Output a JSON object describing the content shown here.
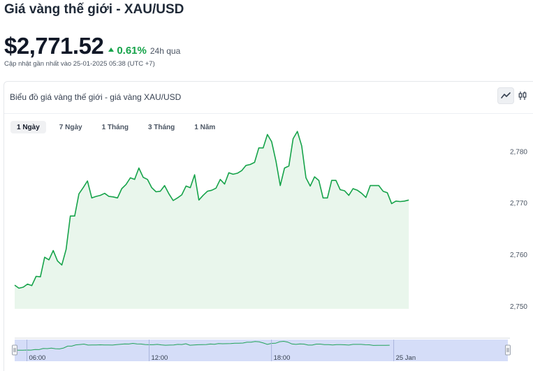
{
  "page": {
    "title": "Giá vàng thế giới - XAU/USD",
    "price": "$2,771.52",
    "change_pct": "0.61%",
    "change_period": "24h qua",
    "updated": "Cập nhật gần nhất vào 25-01-2025 05:38 (UTC +7)"
  },
  "card": {
    "title": "Biểu đồ giá vàng thế giới - giá vàng XAU/USD",
    "tabs": [
      {
        "label": "1 Ngày",
        "active": true
      },
      {
        "label": "7 Ngày",
        "active": false
      },
      {
        "label": "1 Tháng",
        "active": false
      },
      {
        "label": "3 Tháng",
        "active": false
      },
      {
        "label": "1 Năm",
        "active": false
      }
    ],
    "icons": [
      "line-chart-icon",
      "candlestick-icon"
    ]
  },
  "colors": {
    "line": "#16a34a",
    "area": "#e9f6ec",
    "navigator_fill": "#c7d2f5",
    "navigator_line": "#22a35a",
    "accent_green": "#16a34a"
  },
  "chart_data": {
    "type": "area",
    "title": "",
    "xlabel": "",
    "ylabel": "",
    "ylim": [
      2749.5,
      2785
    ],
    "y_ticks": [
      2750,
      2760,
      2770,
      2780
    ],
    "y_tick_labels": [
      "2,750",
      "2,760",
      "2,770",
      "2,780"
    ],
    "x_range": [
      5.4,
      29.6
    ],
    "navigator_ticks": [
      {
        "x": 6,
        "label": "06:00"
      },
      {
        "x": 12,
        "label": "12:00"
      },
      {
        "x": 18,
        "label": "18:00"
      },
      {
        "x": 24,
        "label": "25 Jan"
      }
    ],
    "series": [
      {
        "name": "",
        "points": [
          [
            5.4,
            2754.1
          ],
          [
            5.6,
            2753.5
          ],
          [
            5.8,
            2753.7
          ],
          [
            6.0,
            2754.3
          ],
          [
            6.2,
            2754.0
          ],
          [
            6.4,
            2755.8
          ],
          [
            6.6,
            2755.7
          ],
          [
            6.8,
            2759.5
          ],
          [
            7.0,
            2759.0
          ],
          [
            7.2,
            2760.8
          ],
          [
            7.4,
            2758.8
          ],
          [
            7.6,
            2758.0
          ],
          [
            7.8,
            2761.0
          ],
          [
            8.0,
            2767.5
          ],
          [
            8.2,
            2767.5
          ],
          [
            8.4,
            2771.8
          ],
          [
            8.6,
            2773.0
          ],
          [
            8.8,
            2774.3
          ],
          [
            9.0,
            2771.0
          ],
          [
            9.2,
            2771.3
          ],
          [
            9.4,
            2771.5
          ],
          [
            9.6,
            2771.9
          ],
          [
            9.8,
            2771.3
          ],
          [
            10.0,
            2771.2
          ],
          [
            10.2,
            2771.0
          ],
          [
            10.4,
            2772.8
          ],
          [
            10.6,
            2773.6
          ],
          [
            10.8,
            2774.9
          ],
          [
            11.0,
            2774.6
          ],
          [
            11.2,
            2776.8
          ],
          [
            11.4,
            2775.0
          ],
          [
            11.6,
            2774.6
          ],
          [
            11.8,
            2773.0
          ],
          [
            12.0,
            2772.2
          ],
          [
            12.2,
            2772.3
          ],
          [
            12.4,
            2773.4
          ],
          [
            12.6,
            2771.8
          ],
          [
            12.8,
            2770.5
          ],
          [
            13.0,
            2771.0
          ],
          [
            13.2,
            2771.6
          ],
          [
            13.4,
            2773.3
          ],
          [
            13.6,
            2773.0
          ],
          [
            13.8,
            2775.5
          ],
          [
            14.0,
            2770.6
          ],
          [
            14.2,
            2771.5
          ],
          [
            14.4,
            2772.3
          ],
          [
            14.6,
            2772.5
          ],
          [
            14.8,
            2772.9
          ],
          [
            15.0,
            2774.6
          ],
          [
            15.2,
            2773.7
          ],
          [
            15.4,
            2775.9
          ],
          [
            15.6,
            2775.6
          ],
          [
            15.8,
            2775.8
          ],
          [
            16.0,
            2776.3
          ],
          [
            16.2,
            2777.3
          ],
          [
            16.4,
            2777.5
          ],
          [
            16.6,
            2777.9
          ],
          [
            16.8,
            2780.7
          ],
          [
            17.0,
            2780.7
          ],
          [
            17.2,
            2783.3
          ],
          [
            17.4,
            2781.9
          ],
          [
            17.6,
            2778.1
          ],
          [
            17.8,
            2773.4
          ],
          [
            18.0,
            2776.8
          ],
          [
            18.2,
            2777.2
          ],
          [
            18.4,
            2782.5
          ],
          [
            18.6,
            2783.9
          ],
          [
            18.8,
            2781.1
          ],
          [
            19.0,
            2774.9
          ],
          [
            19.2,
            2773.3
          ],
          [
            19.4,
            2775.1
          ],
          [
            19.6,
            2774.4
          ],
          [
            19.8,
            2771.0
          ],
          [
            20.0,
            2771.0
          ],
          [
            20.2,
            2774.4
          ],
          [
            20.4,
            2774.4
          ],
          [
            20.6,
            2772.6
          ],
          [
            20.8,
            2772.4
          ],
          [
            21.0,
            2771.5
          ],
          [
            21.2,
            2772.8
          ],
          [
            21.4,
            2772.5
          ],
          [
            21.6,
            2771.9
          ],
          [
            21.8,
            2771.1
          ],
          [
            22.0,
            2773.4
          ],
          [
            22.2,
            2773.4
          ],
          [
            22.4,
            2773.4
          ],
          [
            22.6,
            2772.3
          ],
          [
            22.8,
            2772.0
          ],
          [
            23.0,
            2769.9
          ],
          [
            23.2,
            2770.4
          ],
          [
            23.4,
            2770.3
          ],
          [
            23.6,
            2770.4
          ],
          [
            23.8,
            2770.6
          ]
        ]
      }
    ],
    "grid": false,
    "legend": "none"
  }
}
